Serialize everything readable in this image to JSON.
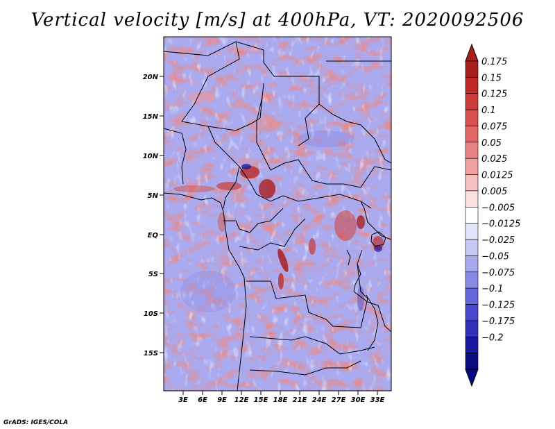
{
  "title": "Vertical velocity [m/s] at 400hPa, VT: 2020092506",
  "credit": "GrADS: IGES/COLA",
  "map": {
    "lat_ticks": [
      "20N",
      "15N",
      "10N",
      "5N",
      "EQ",
      "5S",
      "10S",
      "15S"
    ],
    "lon_ticks": [
      "3E",
      "6E",
      "9E",
      "12E",
      "15E",
      "18E",
      "21E",
      "24E",
      "27E",
      "30E",
      "33E"
    ]
  },
  "chart_data": {
    "type": "heatmap",
    "title": "Vertical velocity [m/s] at 400hPa, VT: 2020092506",
    "variable": "Vertical velocity",
    "units": "m/s",
    "level": "400hPa",
    "valid_time": "2020092506",
    "colorbar": {
      "levels": [
        "0.175",
        "0.15",
        "0.125",
        "0.1",
        "0.075",
        "0.05",
        "0.025",
        "0.0125",
        "0.005",
        "-0.005",
        "-0.0125",
        "-0.025",
        "-0.05",
        "-0.075",
        "-0.1",
        "-0.125",
        "-0.175",
        "-0.2"
      ],
      "colors": [
        "#a81e1e",
        "#be2828",
        "#cd3c3c",
        "#d95050",
        "#e26666",
        "#e98282",
        "#f0a0a0",
        "#f6c0c0",
        "#fbe0e0",
        "#ffffff",
        "#e4e4fb",
        "#c8c8f4",
        "#a8a8ee",
        "#8888e6",
        "#6666dc",
        "#4848cc",
        "#3030b8",
        "#1818a0",
        "#0a0a80"
      ]
    }
  }
}
